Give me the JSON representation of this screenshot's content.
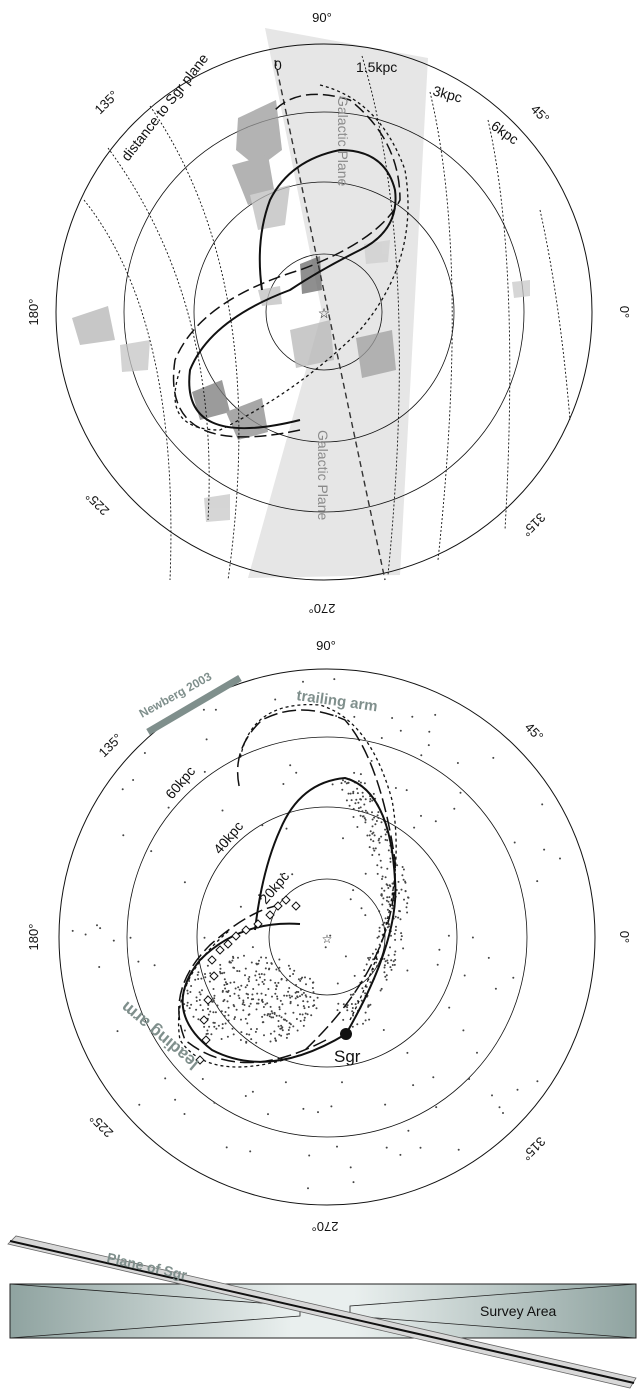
{
  "top_panel": {
    "angle_labels": {
      "a0": "0°",
      "a45": "45°",
      "a90": "90°",
      "a135": "135°",
      "a180": "180°",
      "a225": "225°",
      "a270": "270°",
      "a315": "315°"
    },
    "distance_title": "distance to Sgr plane",
    "distance_labels": [
      "0",
      "1.5kpc",
      "3kpc",
      "6kpc"
    ],
    "plane_label_top": "Galactic Plane",
    "plane_label_bottom": "Galactic Plane"
  },
  "bottom_panel": {
    "angle_labels": {
      "a0": "0°",
      "a45": "45°",
      "a90": "90°",
      "a135": "135°",
      "a180": "180°",
      "a225": "225°",
      "a270": "270°",
      "a315": "315°"
    },
    "newberg_label": "Newberg 2003",
    "trailing_label": "trailing arm",
    "leading_label": "leading arm",
    "ring_labels": [
      "60kpc",
      "40kpc",
      "20kpc"
    ],
    "sgr_label": "Sgr"
  },
  "schematic": {
    "plane_label": "Plane of Sgr",
    "survey_label": "Survey Area"
  },
  "colors": {
    "plane_band": "#e6e6e6",
    "newberg_bar": "#7f8f8c",
    "survey_fill": "#8fa3a0"
  }
}
